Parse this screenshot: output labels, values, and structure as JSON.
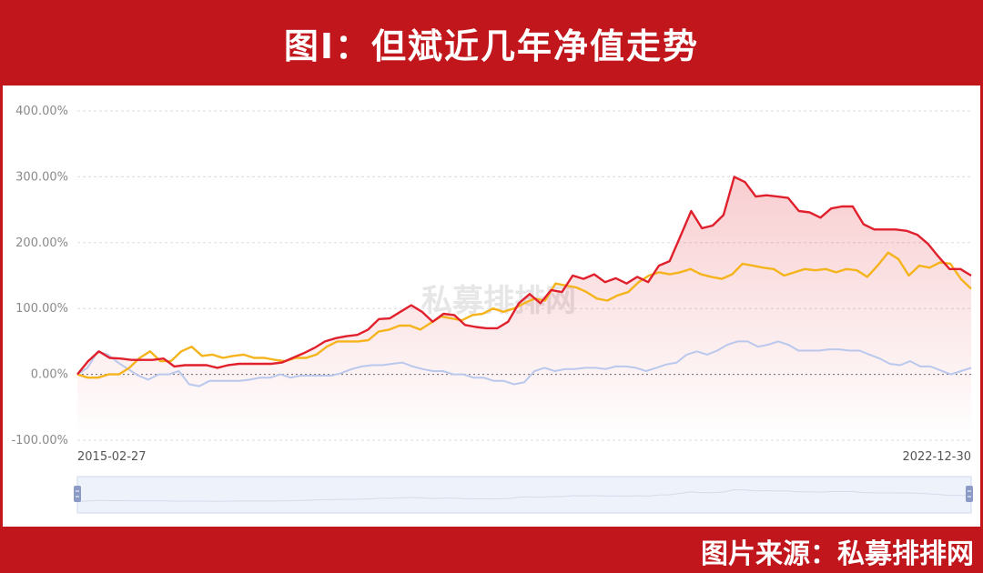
{
  "header": {
    "title": "图Ⅰ：但斌近几年净值走势"
  },
  "footer": {
    "source": "图片来源：私募排排网"
  },
  "watermark": "私募排排网",
  "colors": {
    "red": "#e0202c",
    "yellow": "#f5b31c",
    "blue": "#b9c8ec",
    "grid": "#dcdcdc",
    "zero": "#6a6a6a",
    "axis_text": "#8a8a8a"
  },
  "chart_data": {
    "type": "line",
    "start_label": "2015-02-27",
    "end_label": "2022-12-30",
    "y_ticks": [
      "400.00%",
      "300.00%",
      "200.00%",
      "100.00%",
      "0.00%",
      "-100.00%"
    ],
    "y_tick_values": [
      400,
      300,
      200,
      100,
      0,
      -100
    ],
    "ylim": [
      -100,
      400
    ],
    "grid": true,
    "series": [
      {
        "color": "red",
        "values": [
          0,
          20,
          35,
          25,
          24,
          22,
          22,
          22,
          24,
          12,
          14,
          14,
          14,
          10,
          14,
          16,
          16,
          16,
          16,
          18,
          25,
          32,
          40,
          50,
          55,
          58,
          60,
          68,
          84,
          85,
          95,
          105,
          95,
          80,
          92,
          90,
          75,
          72,
          70,
          70,
          80,
          108,
          122,
          108,
          128,
          125,
          150,
          145,
          152,
          140,
          146,
          138,
          148,
          140,
          165,
          172,
          210,
          248,
          222,
          226,
          242,
          300,
          292,
          270,
          272,
          270,
          268,
          248,
          246,
          238,
          252,
          255,
          255,
          228,
          220,
          220,
          220,
          218,
          212,
          198,
          178,
          160,
          160,
          150
        ]
      },
      {
        "color": "yellow",
        "values": [
          0,
          -5,
          -5,
          0,
          0,
          10,
          25,
          35,
          20,
          20,
          35,
          42,
          28,
          30,
          25,
          28,
          30,
          25,
          25,
          22,
          20,
          25,
          25,
          30,
          42,
          50,
          50,
          50,
          52,
          65,
          68,
          74,
          74,
          68,
          78,
          88,
          85,
          82,
          90,
          92,
          100,
          95,
          100,
          108,
          115,
          112,
          138,
          135,
          132,
          125,
          115,
          112,
          120,
          125,
          140,
          150,
          155,
          152,
          155,
          160,
          152,
          148,
          145,
          152,
          168,
          165,
          162,
          160,
          150,
          155,
          160,
          158,
          160,
          155,
          160,
          158,
          148,
          165,
          185,
          175,
          150,
          165,
          162,
          170,
          168,
          145,
          130
        ]
      },
      {
        "color": "blue",
        "values": [
          0,
          10,
          35,
          30,
          18,
          8,
          -2,
          -8,
          0,
          0,
          5,
          -15,
          -18,
          -10,
          -10,
          -10,
          -10,
          -8,
          -5,
          -5,
          0,
          -5,
          -2,
          -2,
          -2,
          -2,
          2,
          8,
          12,
          14,
          14,
          16,
          18,
          12,
          8,
          5,
          5,
          0,
          0,
          -5,
          -5,
          -10,
          -10,
          -15,
          -12,
          5,
          10,
          5,
          8,
          8,
          10,
          10,
          8,
          12,
          12,
          10,
          5,
          10,
          15,
          18,
          30,
          35,
          30,
          36,
          45,
          50,
          50,
          42,
          45,
          50,
          45,
          36,
          36,
          36,
          38,
          38,
          36,
          36,
          30,
          24,
          16,
          14,
          20,
          12,
          12,
          6,
          0,
          5,
          10
        ]
      }
    ]
  }
}
